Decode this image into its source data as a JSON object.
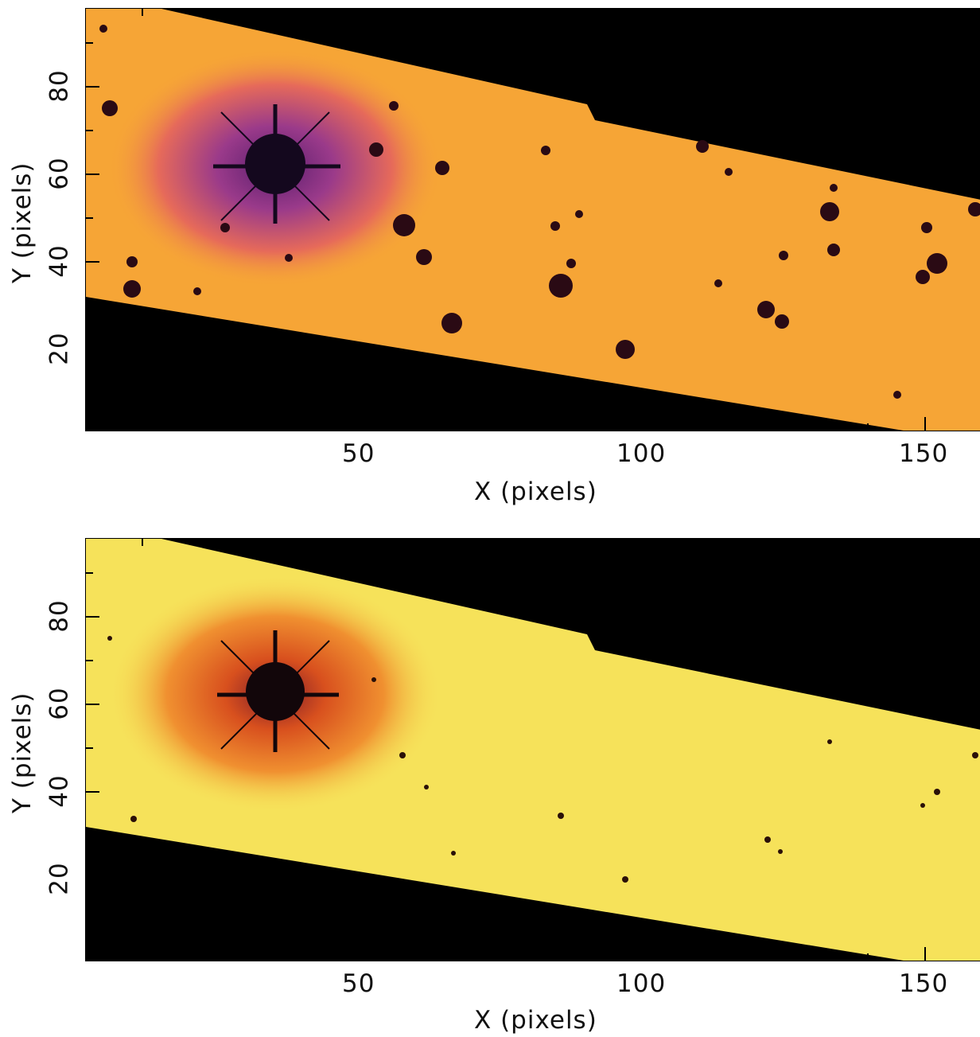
{
  "panels": [
    {
      "id": "top",
      "xlabel": "X (pixels)",
      "ylabel": "Y (pixels)",
      "xticks": [
        "50",
        "100",
        "150"
      ],
      "yticks": [
        "80",
        "60",
        "40",
        "20"
      ],
      "colormap": "orange-magenta",
      "colors": {
        "bg": "#f6a536",
        "halo": "#a0368c",
        "core": "#14081e",
        "mask": "#000000"
      }
    },
    {
      "id": "bottom",
      "xlabel": "X (pixels)",
      "ylabel": "Y (pixels)",
      "xticks": [
        "50",
        "100",
        "150"
      ],
      "yticks": [
        "80",
        "60",
        "40",
        "20"
      ],
      "colormap": "yellow-orange",
      "colors": {
        "bg": "#f6e25a",
        "halo": "#ee8a20",
        "core": "#12060a",
        "mask": "#000000"
      }
    }
  ]
}
